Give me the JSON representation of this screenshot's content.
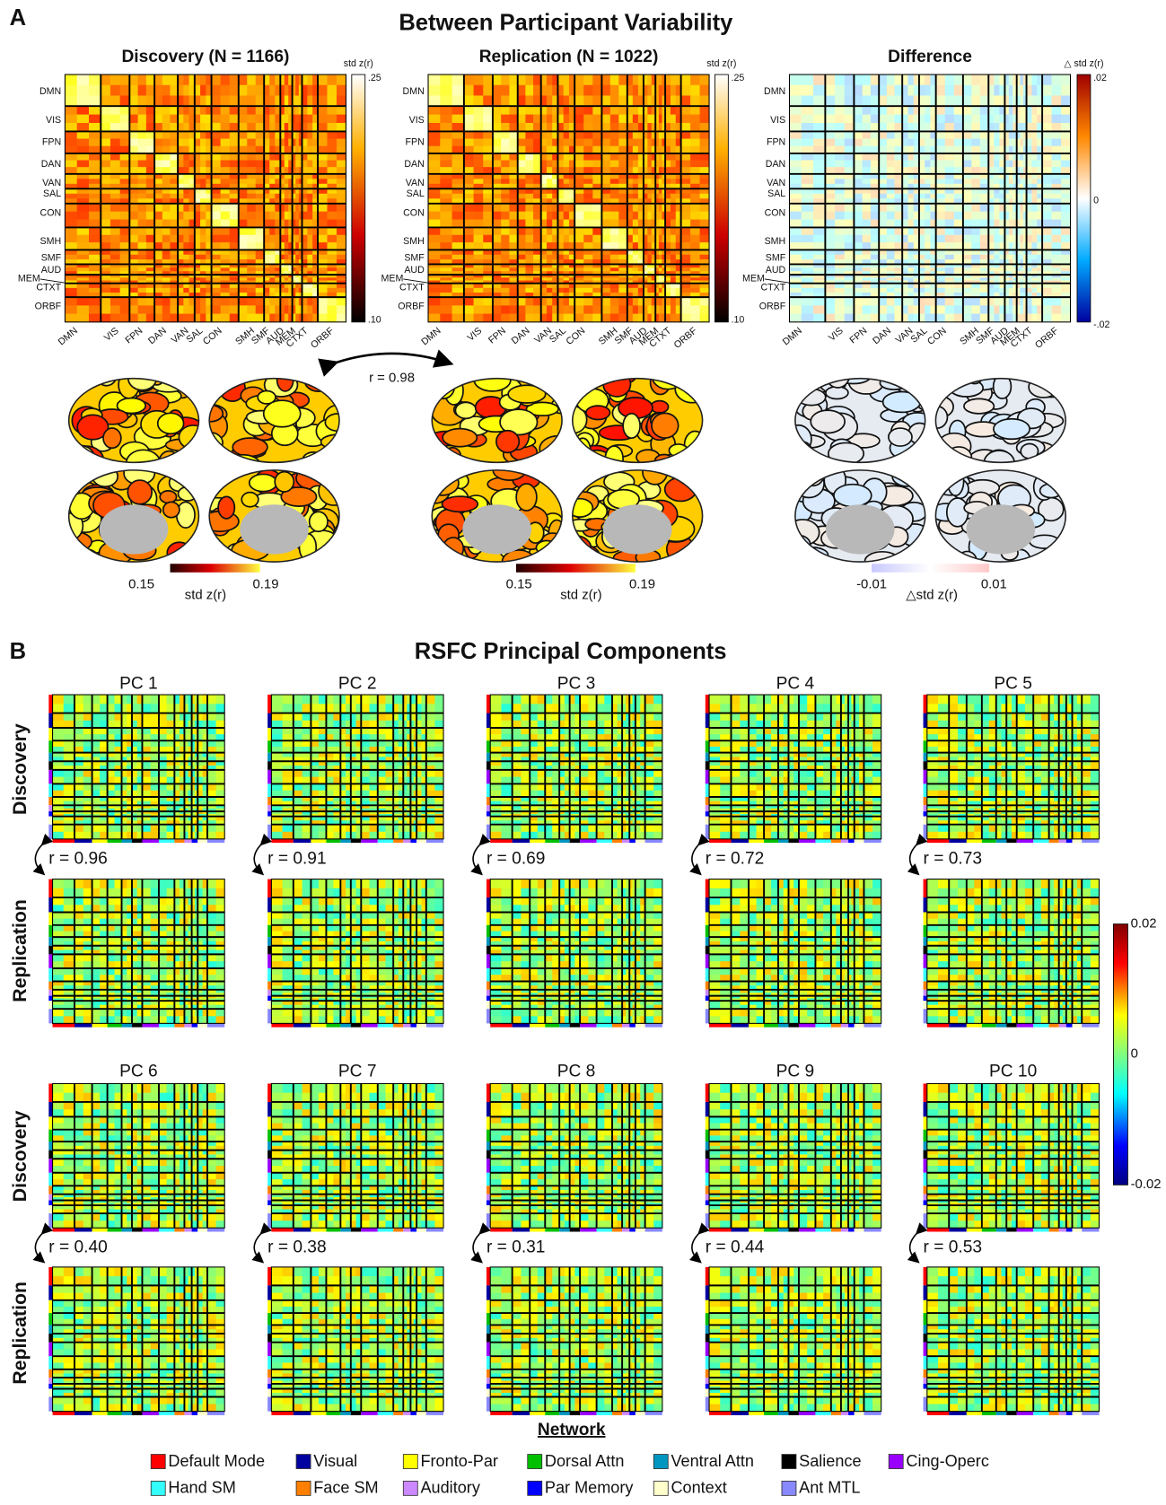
{
  "panel_a": {
    "letter": "A",
    "title": "Between Participant Variability",
    "matrices": [
      {
        "title": "Discovery (N = 1166)",
        "colorbar_label": "std z(r)",
        "colorbar_ticks": [
          ".25",
          ".10"
        ]
      },
      {
        "title": "Replication (N = 1022)",
        "colorbar_label": "std z(r)",
        "colorbar_ticks": [
          ".25",
          ".10"
        ]
      },
      {
        "title": "Difference",
        "colorbar_label": "△ std z(r)",
        "colorbar_ticks": [
          ".02",
          "0",
          "-.02"
        ]
      }
    ],
    "network_labels": [
      "DMN",
      "VIS",
      "FPN",
      "DAN",
      "VAN",
      "SAL",
      "CON",
      "SMH",
      "SMF",
      "AUD",
      "MEM",
      "CTXT",
      "ORBF"
    ],
    "correlation": "r = 0.98",
    "brain_colorbars": [
      {
        "min": "0.15",
        "max": "0.19",
        "label": "std z(r)"
      },
      {
        "min": "0.15",
        "max": "0.19",
        "label": "std z(r)"
      },
      {
        "min": "-0.01",
        "max": "0.01",
        "label": "△std z(r)"
      }
    ]
  },
  "panel_b": {
    "letter": "B",
    "title": "RSFC Principal Components",
    "row_labels": [
      "Discovery",
      "Replication"
    ],
    "components": [
      {
        "name": "PC 1",
        "r": "r = 0.96"
      },
      {
        "name": "PC 2",
        "r": "r = 0.91"
      },
      {
        "name": "PC 3",
        "r": "r = 0.69"
      },
      {
        "name": "PC 4",
        "r": "r = 0.72"
      },
      {
        "name": "PC 5",
        "r": "r = 0.73"
      },
      {
        "name": "PC 6",
        "r": "r = 0.40"
      },
      {
        "name": "PC 7",
        "r": "r = 0.38"
      },
      {
        "name": "PC 8",
        "r": "r = 0.31"
      },
      {
        "name": "PC 9",
        "r": "r = 0.44"
      },
      {
        "name": "PC 10",
        "r": "r = 0.53"
      }
    ],
    "colorbar_ticks": [
      "0.02",
      "0",
      "-0.02"
    ]
  },
  "legend": {
    "title": "Network",
    "items": [
      {
        "name": "Default Mode",
        "color": "#ff0000"
      },
      {
        "name": "Visual",
        "color": "#0000a0"
      },
      {
        "name": "Fronto-Par",
        "color": "#ffff00"
      },
      {
        "name": "Dorsal Attn",
        "color": "#00c000"
      },
      {
        "name": "Ventral Attn",
        "color": "#0096c0"
      },
      {
        "name": "Salience",
        "color": "#000000"
      },
      {
        "name": "Cing-Operc",
        "color": "#9900ff"
      },
      {
        "name": "Hand SM",
        "color": "#33ffff"
      },
      {
        "name": "Face SM",
        "color": "#ff8000"
      },
      {
        "name": "Auditory",
        "color": "#cc88ff"
      },
      {
        "name": "Par Memory",
        "color": "#0000ff"
      },
      {
        "name": "Context",
        "color": "#ffffcc"
      },
      {
        "name": "Ant MTL",
        "color": "#8888ff"
      }
    ]
  }
}
